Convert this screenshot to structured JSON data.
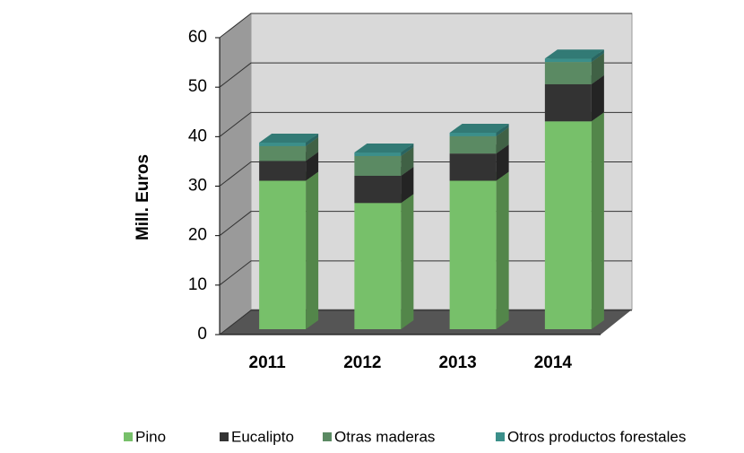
{
  "chart_data": {
    "type": "bar",
    "stacked": true,
    "y_label": "Mill. Euros",
    "categories": [
      "2011",
      "2012",
      "2013",
      "2014"
    ],
    "series": [
      {
        "name": "Pino",
        "color": "#77c06a",
        "values": [
          30,
          25.5,
          30,
          42
        ]
      },
      {
        "name": "Eucalipto",
        "color": "#333333",
        "values": [
          4,
          5.5,
          5.5,
          7.5
        ]
      },
      {
        "name": "Otras maderas",
        "color": "#5b8a63",
        "values": [
          3,
          4,
          3.5,
          4.5
        ]
      },
      {
        "name": "Otros productos forestales",
        "color": "#3b8f8a",
        "values": [
          0.7,
          0.7,
          0.7,
          0.7
        ]
      }
    ],
    "ylim": [
      0,
      60
    ],
    "yticks": [
      0,
      10,
      20,
      30,
      40,
      50,
      60
    ],
    "grid": true
  }
}
